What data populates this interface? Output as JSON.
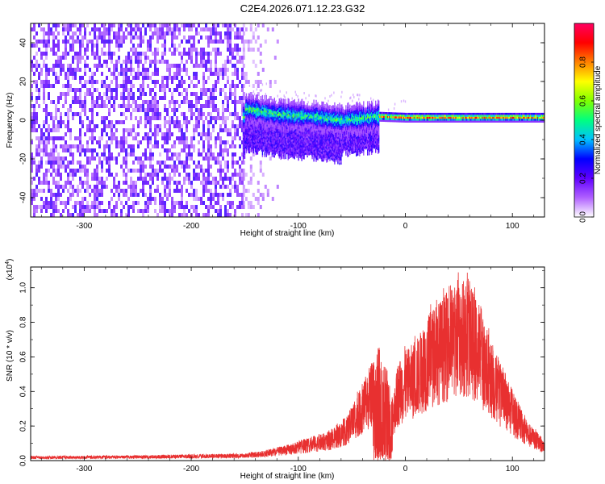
{
  "title": "C2E4.2026.071.12.23.G32",
  "chart_data": [
    {
      "type": "heatmap",
      "name": "spectrogram",
      "xlabel": "Height of straight line (km)",
      "ylabel": "Frequency (Hz)",
      "xlim": [
        -350,
        130
      ],
      "ylim": [
        -50,
        50
      ],
      "x_ticks": [
        -300,
        -200,
        -100,
        0,
        100
      ],
      "x_tick_labels": [
        "-300",
        "-200",
        "-100",
        "0",
        "100"
      ],
      "y_ticks": [
        -40,
        -20,
        0,
        20,
        40
      ],
      "y_tick_labels": [
        "-40",
        "-20",
        "0",
        "20",
        "40"
      ],
      "noise_region_x": [
        -350,
        -152
      ],
      "fading_region_x": [
        -152,
        -115
      ],
      "signal_band": {
        "x_start": -152,
        "x_end": 130,
        "center_hz": [
          {
            "x": -150,
            "y": 6
          },
          {
            "x": -120,
            "y": 3
          },
          {
            "x": -90,
            "y": 2
          },
          {
            "x": -60,
            "y": 0
          },
          {
            "x": -40,
            "y": 1
          },
          {
            "x": -25,
            "y": 2
          },
          {
            "x": 0,
            "y": 1.5
          },
          {
            "x": 50,
            "y": 1.5
          },
          {
            "x": 130,
            "y": 1.5
          }
        ]
      },
      "colorbar": {
        "label": "Normalized spectral amplitude",
        "ticks": [
          0.0,
          0.2,
          0.4,
          0.6,
          0.8
        ],
        "tick_labels": [
          "0.0",
          "0.2",
          "0.4",
          "0.6",
          "0.8"
        ],
        "range": [
          0,
          1
        ],
        "colors": [
          "#ffffff",
          "#b060ff",
          "#6000ff",
          "#0000ff",
          "#00c0ff",
          "#00ff80",
          "#80ff00",
          "#ffff00",
          "#ff8000",
          "#ff0000",
          "#ff0060"
        ]
      }
    },
    {
      "type": "line",
      "name": "snr",
      "xlabel": "Height of straight line (km)",
      "ylabel": "SNR (10 * v/v)",
      "y_scale_label": "(x10",
      "y_scale_exp": "4",
      "xlim": [
        -350,
        130
      ],
      "ylim": [
        0,
        1.12
      ],
      "x_ticks": [
        -300,
        -200,
        -100,
        0,
        100
      ],
      "x_tick_labels": [
        "-300",
        "-200",
        "-100",
        "0",
        "100"
      ],
      "y_ticks": [
        0.0,
        0.2,
        0.4,
        0.6,
        0.8,
        1.0
      ],
      "y_tick_labels": [
        "0.0",
        "0.2",
        "0.4",
        "0.6",
        "0.8",
        "1.0"
      ],
      "series": [
        {
          "name": "SNR",
          "color": "#e83030",
          "envelope": [
            {
              "x": -350,
              "y": 0.025
            },
            {
              "x": -250,
              "y": 0.03
            },
            {
              "x": -200,
              "y": 0.035
            },
            {
              "x": -150,
              "y": 0.04
            },
            {
              "x": -130,
              "y": 0.06
            },
            {
              "x": -110,
              "y": 0.09
            },
            {
              "x": -90,
              "y": 0.13
            },
            {
              "x": -70,
              "y": 0.17
            },
            {
              "x": -55,
              "y": 0.25
            },
            {
              "x": -45,
              "y": 0.38
            },
            {
              "x": -35,
              "y": 0.5
            },
            {
              "x": -25,
              "y": 0.65
            },
            {
              "x": -18,
              "y": 0.55
            },
            {
              "x": -13,
              "y": 0.35
            },
            {
              "x": -5,
              "y": 0.6
            },
            {
              "x": 10,
              "y": 0.7
            },
            {
              "x": 25,
              "y": 0.88
            },
            {
              "x": 40,
              "y": 0.98
            },
            {
              "x": 50,
              "y": 1.05
            },
            {
              "x": 60,
              "y": 1.04
            },
            {
              "x": 70,
              "y": 0.88
            },
            {
              "x": 85,
              "y": 0.6
            },
            {
              "x": 100,
              "y": 0.4
            },
            {
              "x": 115,
              "y": 0.22
            },
            {
              "x": 125,
              "y": 0.15
            },
            {
              "x": 130,
              "y": 0.1
            }
          ]
        }
      ]
    }
  ]
}
